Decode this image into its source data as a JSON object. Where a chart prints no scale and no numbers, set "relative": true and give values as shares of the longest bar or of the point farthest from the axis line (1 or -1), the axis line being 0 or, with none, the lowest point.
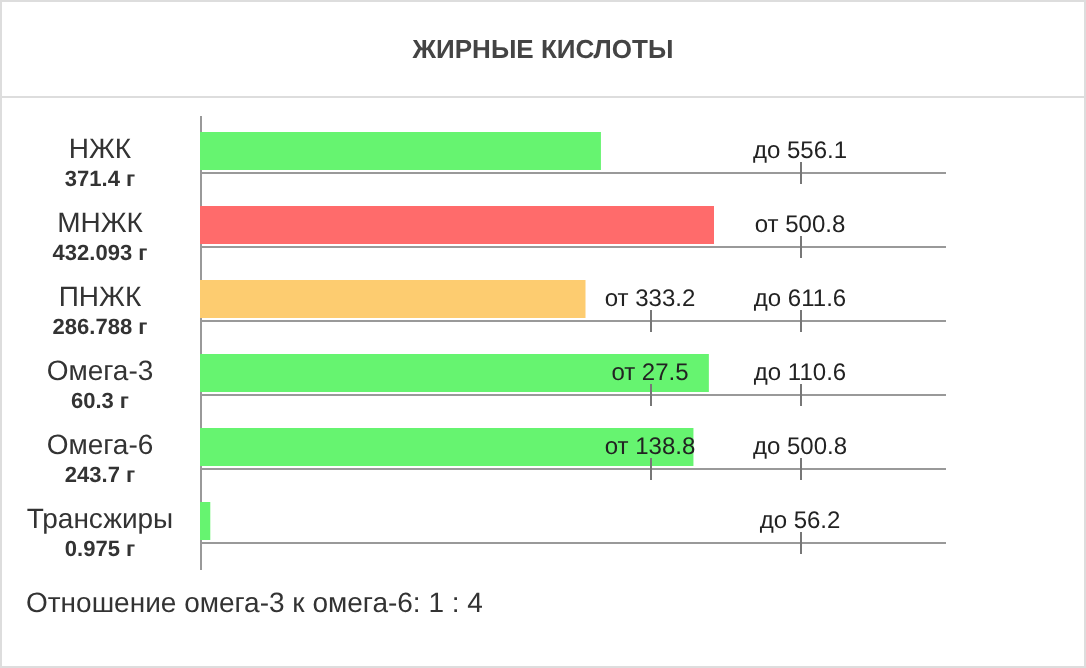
{
  "chart_data": {
    "type": "bar",
    "orientation": "horizontal",
    "relative": true,
    "title": "ЖИРНЫЕ КИСЛОТЫ",
    "categories": [
      "НЖК\n371.4 г",
      "МНЖК\n432.093 г",
      "ПНЖК\n286.788 г",
      "Омега-3\n60.3 г",
      "Омега-6\n243.7 г",
      "Трансжиры\n0.975 г"
    ],
    "values": [
      0.78,
      1,
      0.75,
      0.99,
      0.96,
      0.02
    ],
    "colors": [
      "#66f470",
      "#ff6b6b",
      "#fdcc70",
      "#66f470",
      "#66f470",
      "#66f470"
    ],
    "annotations": [
      "до 556.1",
      "от 500.8",
      "от 333.2",
      "до 611.6",
      "от 27.5",
      "до 110.6",
      "от 138.8",
      "до 500.8",
      "до 56.2",
      "Отношение омега-3 к омега-6: 1 : 4"
    ]
  }
}
